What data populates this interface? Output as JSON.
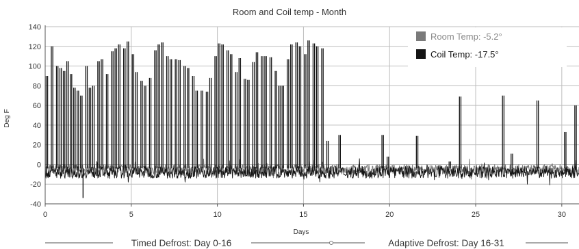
{
  "chart_data": {
    "type": "line",
    "title": "Room and Coil temp - Month",
    "xlabel": "Days",
    "ylabel": "Deg F",
    "xlim": [
      0,
      31
    ],
    "ylim": [
      -40,
      140
    ],
    "x_ticks": [
      0,
      5,
      10,
      15,
      20,
      25,
      30
    ],
    "y_ticks": [
      -40,
      -20,
      0,
      20,
      40,
      60,
      80,
      100,
      120,
      140
    ],
    "grid": true,
    "legend_position": "top-right",
    "series": [
      {
        "name": "Room Temp: -5.2°",
        "color": "#7a7a7a",
        "baseline": -5,
        "noise": 5
      },
      {
        "name": "Coil Temp: -17.5°",
        "color": "#141414",
        "baseline": -8,
        "noise": 6,
        "spikes": [
          [
            0.1,
            90
          ],
          [
            0.4,
            120
          ],
          [
            0.7,
            100
          ],
          [
            0.9,
            98
          ],
          [
            1.1,
            95
          ],
          [
            1.3,
            105
          ],
          [
            1.5,
            92
          ],
          [
            1.7,
            78
          ],
          [
            1.9,
            75
          ],
          [
            2.1,
            70
          ],
          [
            2.4,
            100
          ],
          [
            2.6,
            78
          ],
          [
            2.8,
            80
          ],
          [
            3.1,
            105
          ],
          [
            3.3,
            107
          ],
          [
            3.6,
            92
          ],
          [
            3.9,
            115
          ],
          [
            4.1,
            118
          ],
          [
            4.3,
            122
          ],
          [
            4.6,
            118
          ],
          [
            4.8,
            125
          ],
          [
            5.1,
            112
          ],
          [
            5.3,
            94
          ],
          [
            5.6,
            85
          ],
          [
            5.8,
            80
          ],
          [
            6.1,
            88
          ],
          [
            6.4,
            116
          ],
          [
            6.6,
            122
          ],
          [
            6.8,
            124
          ],
          [
            7.1,
            110
          ],
          [
            7.3,
            107
          ],
          [
            7.6,
            107
          ],
          [
            7.8,
            106
          ],
          [
            8.1,
            100
          ],
          [
            8.3,
            98
          ],
          [
            8.6,
            90
          ],
          [
            8.8,
            75
          ],
          [
            9.1,
            75
          ],
          [
            9.4,
            74
          ],
          [
            9.6,
            88
          ],
          [
            9.9,
            110
          ],
          [
            10.1,
            123
          ],
          [
            10.3,
            122
          ],
          [
            10.6,
            116
          ],
          [
            10.8,
            112
          ],
          [
            11.1,
            94
          ],
          [
            11.3,
            108
          ],
          [
            11.6,
            87
          ],
          [
            11.8,
            86
          ],
          [
            12.1,
            104
          ],
          [
            12.3,
            114
          ],
          [
            12.6,
            110
          ],
          [
            12.8,
            110
          ],
          [
            13.1,
            109
          ],
          [
            13.4,
            95
          ],
          [
            13.6,
            80
          ],
          [
            13.8,
            80
          ],
          [
            14.1,
            107
          ],
          [
            14.3,
            122
          ],
          [
            14.6,
            124
          ],
          [
            14.8,
            120
          ],
          [
            15.1,
            112
          ],
          [
            15.3,
            126
          ],
          [
            15.6,
            123
          ],
          [
            15.8,
            120
          ],
          [
            16.1,
            118
          ],
          [
            16.4,
            24
          ],
          [
            17.1,
            30
          ],
          [
            19.6,
            30
          ],
          [
            19.9,
            8
          ],
          [
            21.6,
            29
          ],
          [
            23.5,
            3
          ],
          [
            24.1,
            69
          ],
          [
            26.6,
            70
          ],
          [
            27.1,
            11
          ],
          [
            28.6,
            65
          ],
          [
            30.2,
            33
          ],
          [
            30.8,
            60
          ]
        ]
      }
    ],
    "annotations": [
      "Timed Defrost: Day 0-16",
      "Adaptive Defrost: Day 16-31"
    ]
  }
}
